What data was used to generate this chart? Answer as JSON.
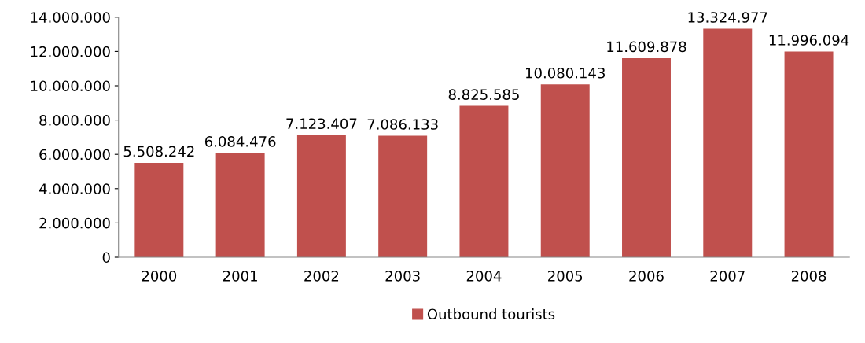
{
  "chart_data": {
    "type": "bar",
    "categories": [
      "2000",
      "2001",
      "2002",
      "2003",
      "2004",
      "2005",
      "2006",
      "2007",
      "2008"
    ],
    "series": [
      {
        "name": "Outbound tourists",
        "color": "#c0504d",
        "values": [
          5508242,
          6084476,
          7123407,
          7086133,
          8825585,
          10080143,
          11609878,
          13324977,
          11996094
        ],
        "value_labels": [
          "5.508.242",
          "6.084.476",
          "7.123.407",
          "7.086.133",
          "8.825.585",
          "10.080.143",
          "11.609.878",
          "13.324.977",
          "11.996.094"
        ]
      }
    ],
    "ylim": [
      0,
      14000000
    ],
    "yticks": [
      {
        "value": 0,
        "label": "0"
      },
      {
        "value": 2000000,
        "label": "2.000.000"
      },
      {
        "value": 4000000,
        "label": "4.000.000"
      },
      {
        "value": 6000000,
        "label": "6.000.000"
      },
      {
        "value": 8000000,
        "label": "8.000.000"
      },
      {
        "value": 10000000,
        "label": "10.000.000"
      },
      {
        "value": 12000000,
        "label": "12.000.000"
      },
      {
        "value": 14000000,
        "label": "14.000.000"
      }
    ],
    "grid": false,
    "legend": "bottom"
  }
}
